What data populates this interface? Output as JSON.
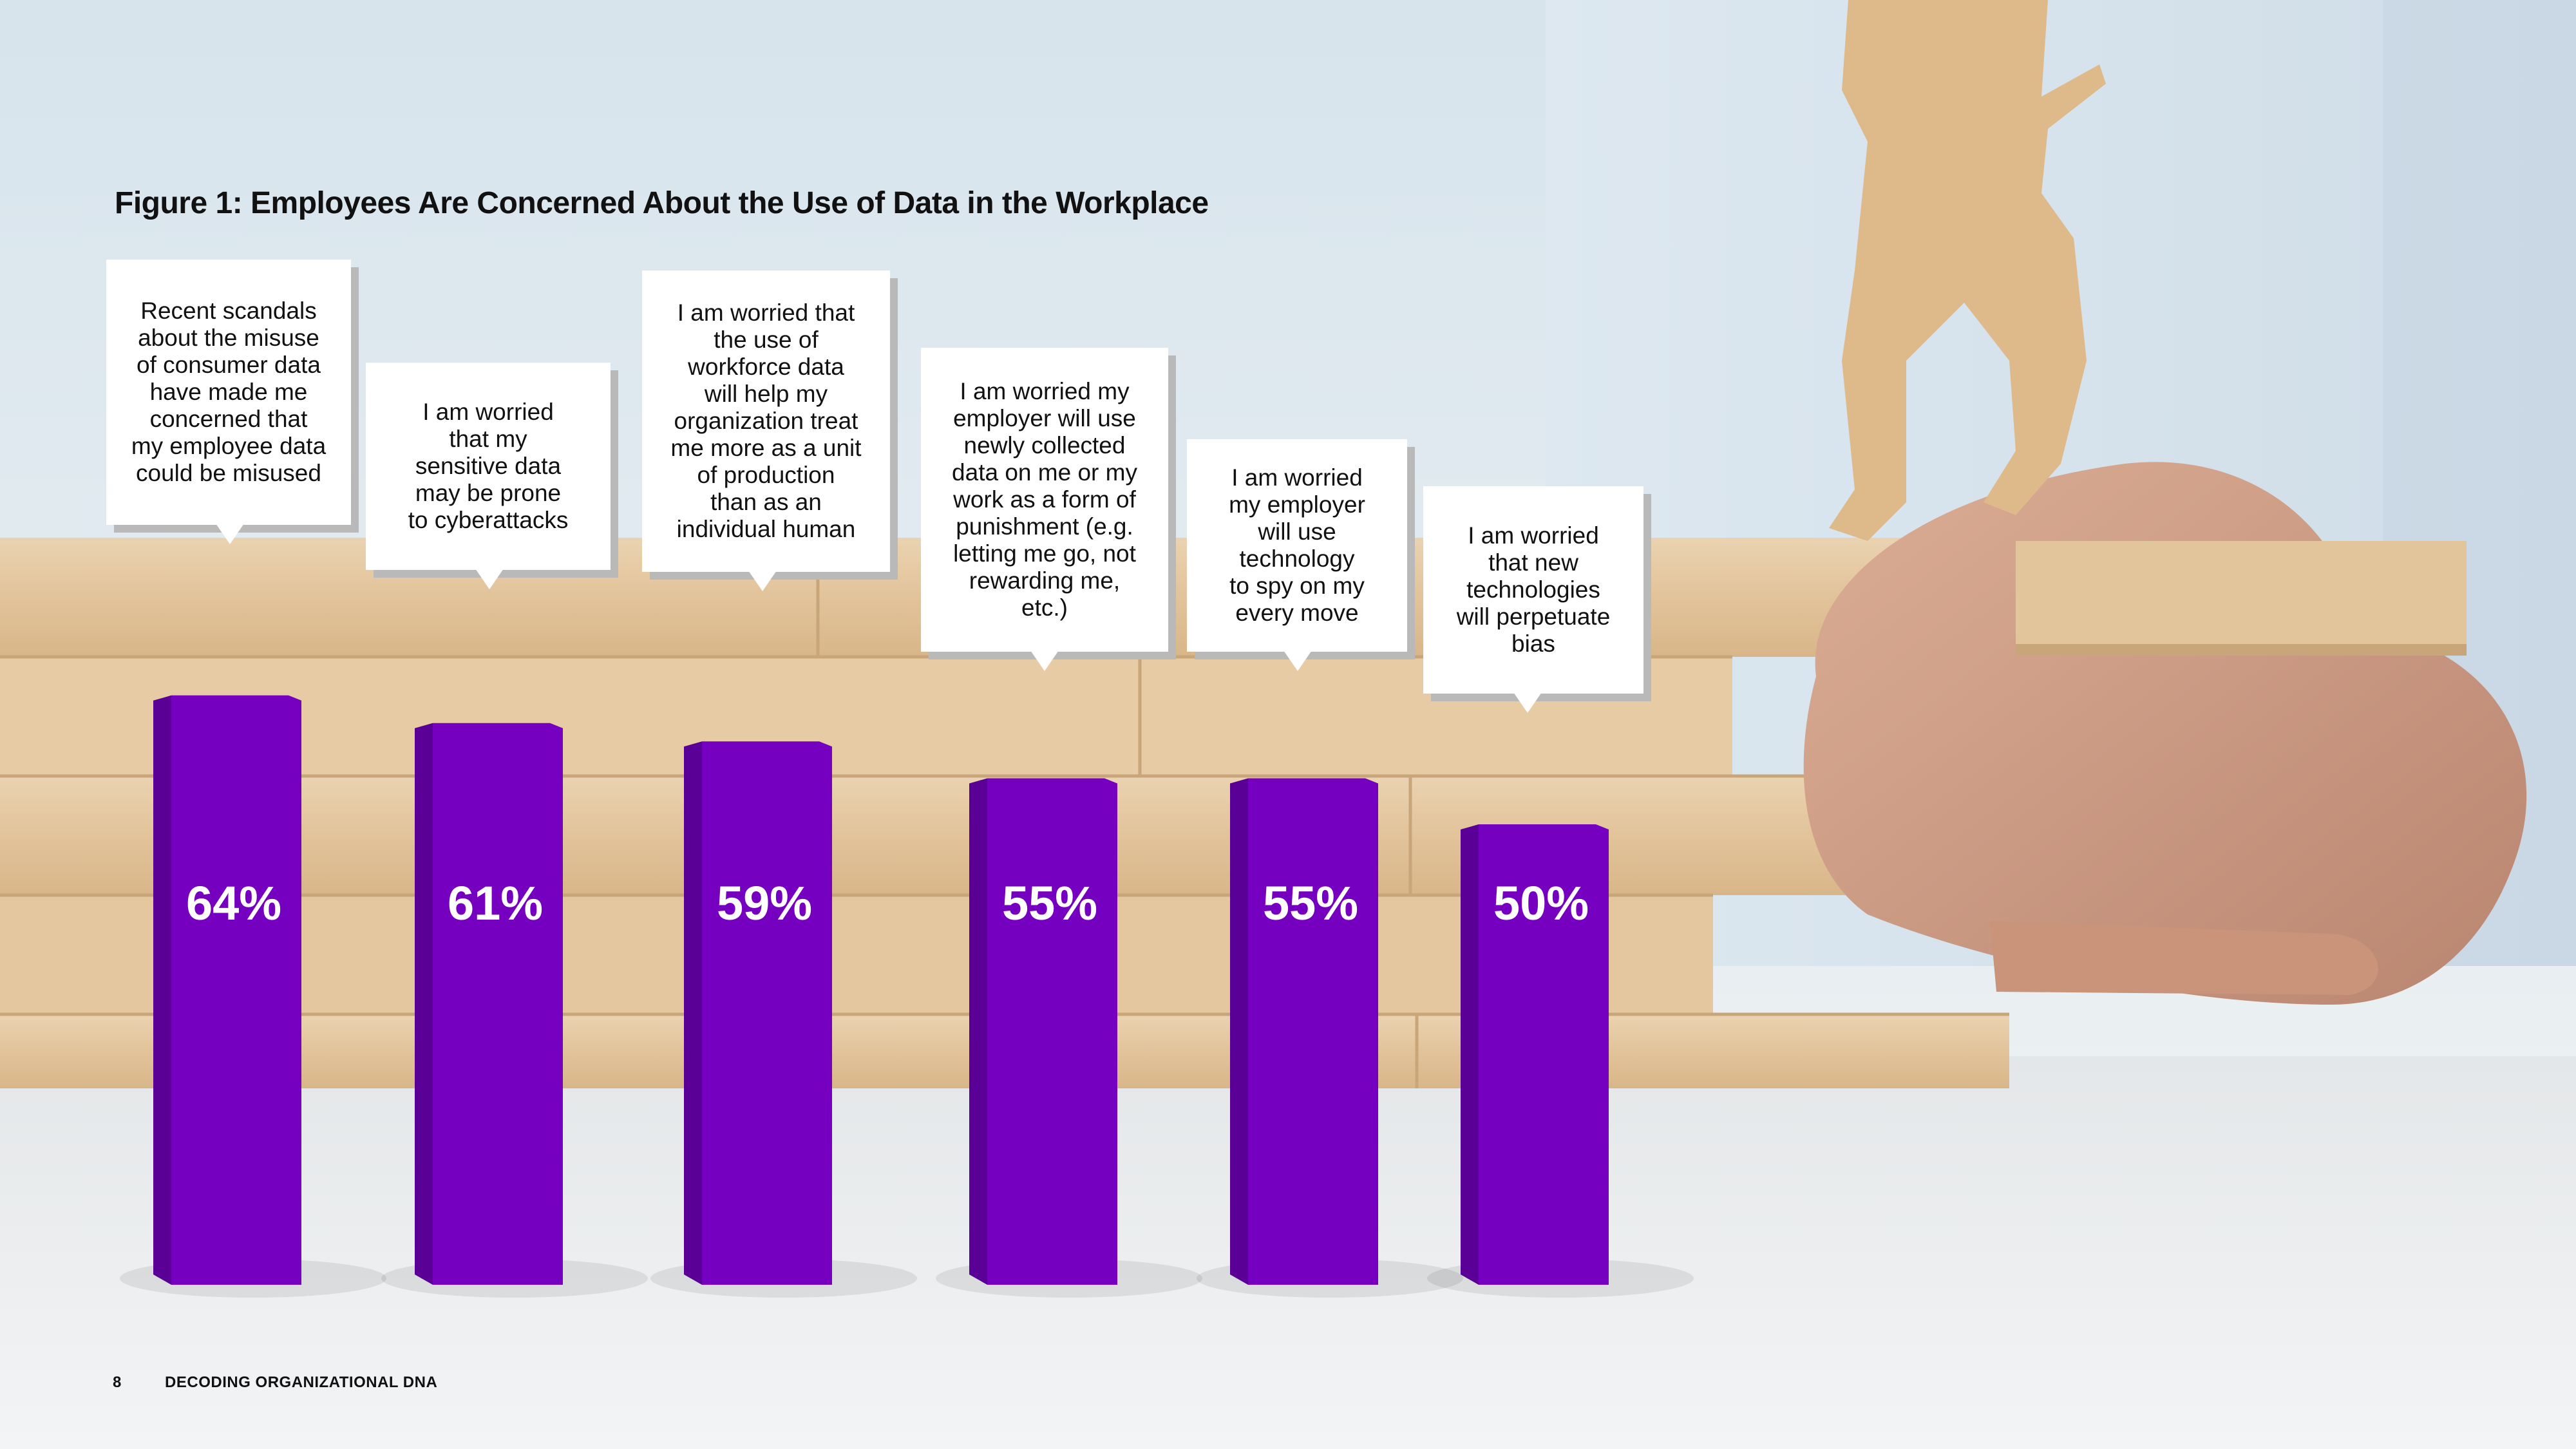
{
  "chart_data": {
    "type": "bar",
    "title": "Figure 1: Employees Are Concerned About the Use of Data in the Workplace",
    "categories": [
      "Recent scandals about the misuse of consumer data have made me concerned that my employee data could be misused",
      "I am worried that my sensitive data may be prone to cyberattacks",
      "I am worried that the use of workforce data will help my organization treat me more as a unit of production than as an individual human",
      "I am worried my employer will use newly collected data on me or my work as a form of punishment (e.g. letting me go, not rewarding me, etc.)",
      "I am worried my employer will use technology to spy on my every move",
      "I am worried that new technologies will perpetuate bias"
    ],
    "values": [
      64,
      61,
      59,
      55,
      55,
      50
    ],
    "value_labels": [
      "64%",
      "61%",
      "59%",
      "55%",
      "55%",
      "50%"
    ],
    "bar_color": "#7500c0",
    "bar_side_color": "#5a0096",
    "grid": false
  },
  "callouts": [
    [
      "Recent scandals",
      "about the misuse",
      "of consumer data",
      "have made me",
      "concerned that",
      "my employee data",
      "could be misused"
    ],
    [
      "I am worried",
      "that my",
      "sensitive data",
      "may be prone",
      "to cyberattacks"
    ],
    [
      "I am worried that",
      "the use of",
      "workforce data",
      "will help my",
      "organization treat",
      "me more as a unit",
      "of production",
      "than as an",
      "individual human"
    ],
    [
      "I am worried my",
      "employer will use",
      "newly collected",
      "data on me or my",
      "work as a form of",
      "punishment (e.g.",
      "letting me go, not",
      "rewarding me,",
      "etc.)"
    ],
    [
      "I am worried",
      "my employer",
      "will use",
      "technology",
      "to spy on my",
      "every move"
    ],
    [
      "I am worried",
      "that new",
      "technologies",
      "will perpetuate",
      "bias"
    ]
  ],
  "footer": {
    "page_number": "8",
    "report_title": "DECODING ORGANIZATIONAL DNA"
  }
}
